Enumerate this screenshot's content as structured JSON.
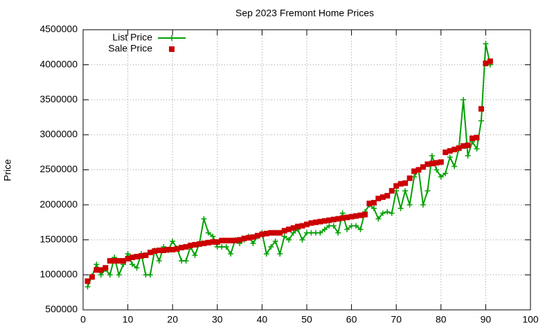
{
  "chart_data": {
    "type": "line",
    "title": "Sep 2023 Fremont Home Prices",
    "y_label": "Price",
    "x": [
      1,
      2,
      3,
      4,
      5,
      6,
      7,
      8,
      9,
      10,
      11,
      12,
      13,
      14,
      15,
      16,
      17,
      18,
      19,
      20,
      21,
      22,
      23,
      24,
      25,
      26,
      27,
      28,
      29,
      30,
      31,
      32,
      33,
      34,
      35,
      36,
      37,
      38,
      39,
      40,
      41,
      42,
      43,
      44,
      45,
      46,
      47,
      48,
      49,
      50,
      51,
      52,
      53,
      54,
      55,
      56,
      57,
      58,
      59,
      60,
      61,
      62,
      63,
      64,
      65,
      66,
      67,
      68,
      69,
      70,
      71,
      72,
      73,
      74,
      75,
      76,
      77,
      78,
      79,
      80,
      81,
      82,
      83,
      84,
      85,
      86,
      87,
      88,
      89,
      90,
      91
    ],
    "series": [
      {
        "name": "List Price",
        "color": "#00a000",
        "style": "linespoints",
        "values": [
          830000,
          980000,
          1150000,
          1000000,
          1080000,
          1000000,
          1250000,
          1000000,
          1150000,
          1300000,
          1150000,
          1100000,
          1300000,
          1000000,
          1000000,
          1350000,
          1200000,
          1400000,
          1350000,
          1480000,
          1380000,
          1200000,
          1200000,
          1400000,
          1280000,
          1450000,
          1800000,
          1600000,
          1550000,
          1400000,
          1400000,
          1400000,
          1300000,
          1500000,
          1450000,
          1500000,
          1550000,
          1450000,
          1550000,
          1600000,
          1300000,
          1400000,
          1480000,
          1300000,
          1550000,
          1500000,
          1600000,
          1650000,
          1500000,
          1600000,
          1600000,
          1600000,
          1600000,
          1650000,
          1700000,
          1700000,
          1600000,
          1880000,
          1650000,
          1700000,
          1700000,
          1650000,
          1900000,
          2000000,
          1950000,
          1800000,
          1880000,
          1900000,
          1880000,
          2200000,
          1950000,
          2200000,
          2000000,
          2400000,
          2500000,
          2000000,
          2200000,
          2700000,
          2500000,
          2400000,
          2450000,
          2680000,
          2550000,
          2800000,
          3500000,
          2700000,
          2900000,
          2800000,
          3200000,
          4300000,
          4000000
        ]
      },
      {
        "name": "Sale Price",
        "color": "#cc0000",
        "style": "points",
        "values": [
          910000,
          970000,
          1070000,
          1070000,
          1100000,
          1200000,
          1200000,
          1200000,
          1200000,
          1230000,
          1250000,
          1260000,
          1270000,
          1280000,
          1320000,
          1340000,
          1350000,
          1350000,
          1360000,
          1360000,
          1370000,
          1390000,
          1400000,
          1420000,
          1430000,
          1440000,
          1450000,
          1460000,
          1470000,
          1470000,
          1490000,
          1490000,
          1490000,
          1490000,
          1500000,
          1520000,
          1530000,
          1540000,
          1560000,
          1580000,
          1590000,
          1600000,
          1600000,
          1600000,
          1630000,
          1650000,
          1670000,
          1690000,
          1700000,
          1720000,
          1740000,
          1750000,
          1760000,
          1770000,
          1780000,
          1790000,
          1800000,
          1810000,
          1820000,
          1830000,
          1840000,
          1850000,
          1860000,
          2020000,
          2030000,
          2090000,
          2110000,
          2130000,
          2200000,
          2270000,
          2300000,
          2310000,
          2380000,
          2480000,
          2500000,
          2540000,
          2580000,
          2590000,
          2600000,
          2610000,
          2750000,
          2770000,
          2790000,
          2810000,
          2840000,
          2850000,
          2950000,
          2960000,
          3370000,
          4020000,
          4050000
        ]
      }
    ],
    "xlim": [
      0,
      100
    ],
    "xticks": [
      0,
      10,
      20,
      30,
      40,
      50,
      60,
      70,
      80,
      90,
      100
    ],
    "ylim": [
      500000,
      4500000
    ],
    "yticks": [
      500000,
      1000000,
      1500000,
      2000000,
      2500000,
      3000000,
      3500000,
      4000000,
      4500000
    ],
    "grid": true,
    "legend": "top-left"
  }
}
